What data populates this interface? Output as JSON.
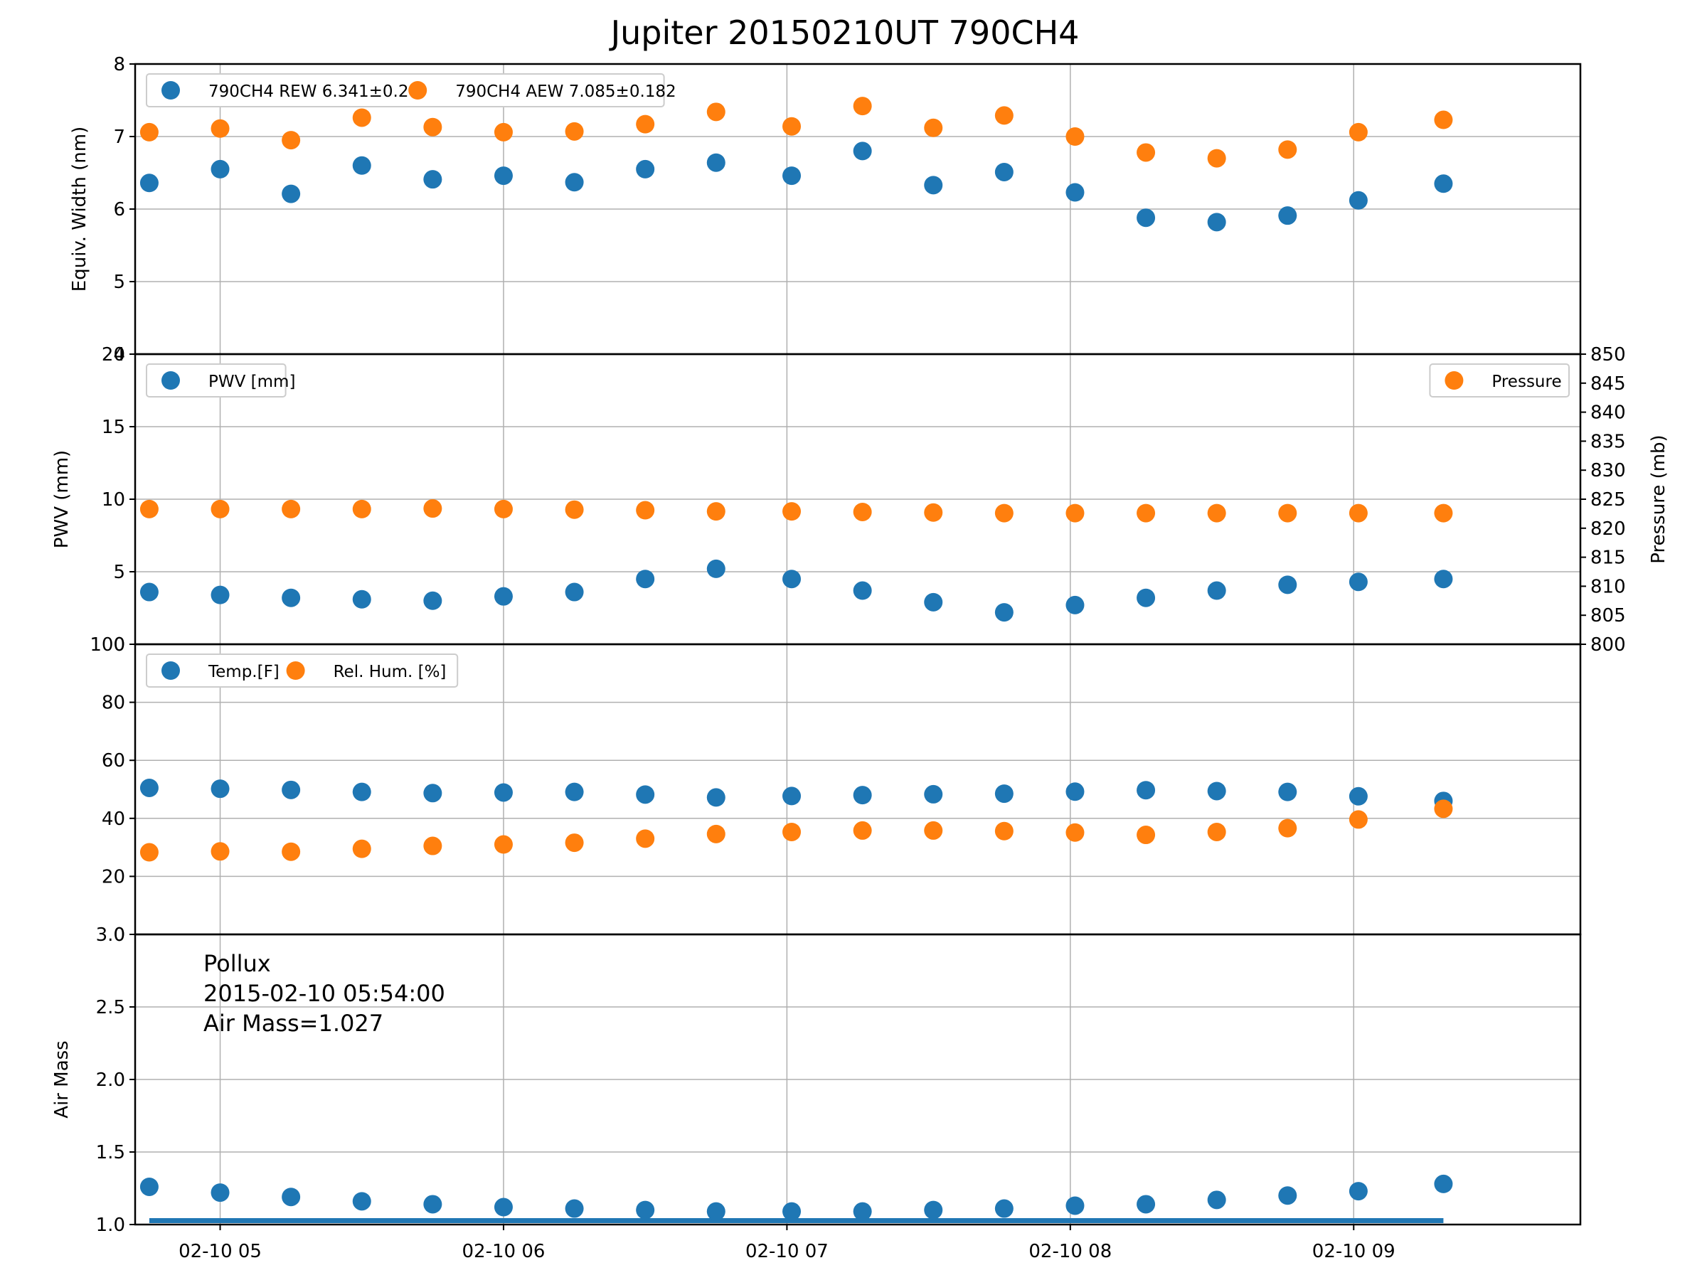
{
  "title": "Jupiter 20150210UT 790CH4",
  "colors": {
    "series1": "#1f77b4",
    "series2": "#ff7f0e",
    "grid": "#b0b0b0",
    "axis": "#000000"
  },
  "x_axis": {
    "type": "time",
    "range": [
      "02-10 04:42",
      "02-10 09:48"
    ],
    "ticks": [
      "02-10 05",
      "02-10 06",
      "02-10 07",
      "02-10 08",
      "02-10 09"
    ],
    "times": [
      "04:45",
      "05:00",
      "05:15",
      "05:30",
      "05:45",
      "06:00",
      "06:15",
      "06:30",
      "06:45",
      "07:01",
      "07:16",
      "07:31",
      "07:46",
      "08:01",
      "08:16",
      "08:31",
      "08:46",
      "09:01",
      "09:19"
    ]
  },
  "chart_data": [
    {
      "type": "scatter",
      "ylabel": "Equiv. Width (nm)",
      "ylim": [
        4,
        8
      ],
      "yticks": [
        4,
        5,
        6,
        7,
        8
      ],
      "grid": true,
      "legend": "top-left",
      "series": [
        {
          "name": "790CH4 REW 6.341±0.26",
          "values": [
            6.36,
            6.55,
            6.21,
            6.6,
            6.41,
            6.46,
            6.37,
            6.55,
            6.64,
            6.46,
            6.8,
            6.33,
            6.51,
            6.23,
            5.88,
            5.82,
            5.91,
            6.12,
            6.35
          ]
        },
        {
          "name": "790CH4 AEW 7.085±0.182",
          "values": [
            7.06,
            7.11,
            6.95,
            7.26,
            7.13,
            7.06,
            7.07,
            7.17,
            7.34,
            7.14,
            7.42,
            7.12,
            7.29,
            7.0,
            6.78,
            6.7,
            6.82,
            7.06,
            7.23
          ]
        }
      ]
    },
    {
      "type": "scatter",
      "ylabel": "PWV (mm)",
      "ylim": [
        0,
        20
      ],
      "yticks": [
        0,
        5,
        10,
        15,
        20
      ],
      "y2label": "Pressure (mb)",
      "y2lim": [
        800,
        850
      ],
      "y2ticks": [
        800,
        805,
        810,
        815,
        820,
        825,
        830,
        835,
        840,
        845,
        850
      ],
      "grid": true,
      "legend": "top-left",
      "legend2": "top-right",
      "series": [
        {
          "name": "PWV [mm]",
          "axis": "left",
          "values": [
            3.6,
            3.4,
            3.2,
            3.1,
            3.0,
            3.3,
            3.6,
            4.5,
            5.2,
            4.5,
            3.7,
            2.9,
            2.2,
            2.7,
            3.2,
            3.7,
            4.1,
            4.3,
            4.5
          ]
        },
        {
          "name": "Pressure",
          "axis": "right",
          "values": [
            823.3,
            823.3,
            823.3,
            823.3,
            823.4,
            823.3,
            823.2,
            823.1,
            822.9,
            822.9,
            822.8,
            822.7,
            822.6,
            822.6,
            822.6,
            822.6,
            822.6,
            822.6,
            822.6
          ]
        }
      ]
    },
    {
      "type": "scatter",
      "ylim": [
        0,
        100
      ],
      "yticks": [
        0,
        20,
        40,
        60,
        80,
        100
      ],
      "grid": true,
      "legend": "top-left",
      "series": [
        {
          "name": "Temp.[F]",
          "values": [
            50.5,
            50.2,
            49.8,
            49.1,
            48.7,
            48.9,
            49.1,
            48.2,
            47.2,
            47.7,
            48.0,
            48.3,
            48.5,
            49.2,
            49.7,
            49.4,
            49.1,
            47.6,
            46.0
          ]
        },
        {
          "name": "Rel. Hum. [%]",
          "values": [
            28.3,
            28.6,
            28.5,
            29.5,
            30.5,
            31.0,
            31.6,
            33.0,
            34.6,
            35.3,
            35.8,
            35.8,
            35.6,
            35.1,
            34.3,
            35.3,
            36.6,
            39.6,
            43.3
          ]
        }
      ]
    },
    {
      "type": "scatter",
      "ylabel": "Air Mass",
      "ylim": [
        1.0,
        3.0
      ],
      "yticks": [
        "1.0",
        "1.5",
        "2.0",
        "2.5",
        "3.0"
      ],
      "grid": true,
      "annotations": [
        "Pollux",
        "2015-02-10 05:54:00",
        "Air Mass=1.027"
      ],
      "reference_line": 1.027,
      "series": [
        {
          "values": [
            1.26,
            1.22,
            1.19,
            1.16,
            1.14,
            1.12,
            1.11,
            1.1,
            1.09,
            1.09,
            1.09,
            1.1,
            1.11,
            1.13,
            1.14,
            1.17,
            1.2,
            1.23,
            1.28
          ]
        }
      ]
    }
  ]
}
